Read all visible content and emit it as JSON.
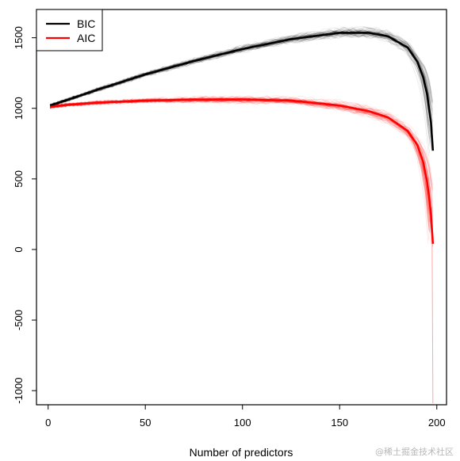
{
  "chart_data": {
    "type": "line",
    "xlabel": "Number of predictors",
    "ylabel": "",
    "xlim": [
      -6,
      205
    ],
    "ylim": [
      -1100,
      1700
    ],
    "xticks": [
      0,
      50,
      100,
      150,
      200
    ],
    "yticks": [
      -1000,
      -500,
      0,
      500,
      1000,
      1500
    ],
    "grid": false,
    "legend": {
      "placement": "top-left",
      "entries": [
        "BIC",
        "AIC"
      ]
    },
    "series": [
      {
        "name": "BIC",
        "color": "#000000",
        "x": [
          1,
          10,
          25,
          50,
          75,
          100,
          125,
          150,
          165,
          175,
          185,
          190,
          193,
          195,
          197,
          198
        ],
        "values": [
          1020,
          1060,
          1130,
          1240,
          1335,
          1420,
          1490,
          1535,
          1535,
          1510,
          1430,
          1330,
          1220,
          1100,
          900,
          700
        ]
      },
      {
        "name": "AIC",
        "color": "#ff0000",
        "x": [
          1,
          10,
          25,
          50,
          75,
          100,
          125,
          150,
          165,
          175,
          185,
          190,
          193,
          195,
          196,
          197,
          198
        ],
        "values": [
          1010,
          1025,
          1040,
          1055,
          1062,
          1063,
          1055,
          1020,
          980,
          935,
          840,
          740,
          620,
          480,
          380,
          250,
          40
        ]
      }
    ]
  },
  "watermark": "@稀土掘金技术社区"
}
